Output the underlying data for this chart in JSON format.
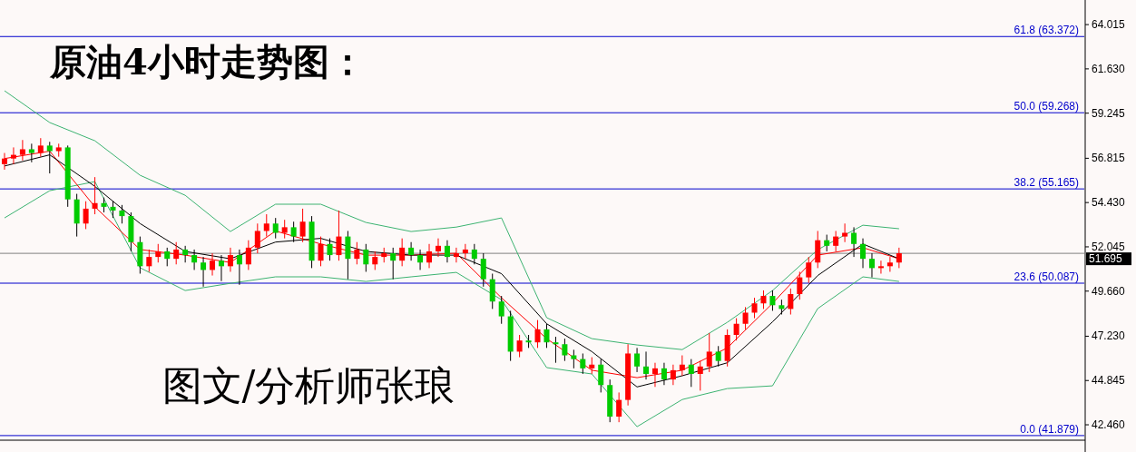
{
  "chart_data": {
    "type": "candlestick",
    "title": "原油4小时走势图：",
    "annotations": [
      "图文/分析师张琅"
    ],
    "categories": [
      null,
      null,
      null,
      null,
      null,
      null,
      null,
      null,
      null,
      null,
      null,
      null,
      null,
      null,
      null,
      null,
      null,
      null,
      null,
      null,
      null,
      null,
      null,
      null,
      null,
      null,
      null,
      null,
      null,
      null,
      null,
      null,
      null,
      null,
      null,
      null,
      null,
      null,
      null,
      null,
      null,
      null,
      null,
      null,
      null,
      null,
      null,
      null,
      null,
      null,
      null,
      null,
      null,
      null,
      null,
      null,
      null,
      null,
      null,
      null,
      null,
      null,
      null,
      null,
      null,
      null,
      null,
      null,
      null,
      null,
      null,
      null,
      null,
      null,
      null,
      null,
      null,
      null,
      null,
      null,
      null,
      null,
      null,
      null,
      null,
      null,
      null,
      null,
      null,
      null,
      null,
      null,
      null,
      null,
      null,
      null,
      null,
      null,
      null,
      null,
      null,
      null,
      null,
      null,
      null,
      null,
      null,
      null,
      null,
      null,
      null,
      null,
      null,
      null,
      null,
      null,
      null,
      null,
      null,
      null
    ],
    "ohlc": [
      [
        56.5,
        57.1,
        56.2,
        56.8
      ],
      [
        56.8,
        57.4,
        56.5,
        57.0
      ],
      [
        57.0,
        57.8,
        56.7,
        57.3
      ],
      [
        57.3,
        57.6,
        56.6,
        57.1
      ],
      [
        57.1,
        57.9,
        56.9,
        57.5
      ],
      [
        57.5,
        57.7,
        56.0,
        57.2
      ],
      [
        57.2,
        57.6,
        56.9,
        57.4
      ],
      [
        57.4,
        57.5,
        54.2,
        54.6
      ],
      [
        54.6,
        54.9,
        52.6,
        53.3
      ],
      [
        53.3,
        54.5,
        53.0,
        54.1
      ],
      [
        54.1,
        55.8,
        53.8,
        54.4
      ],
      [
        54.4,
        54.7,
        53.9,
        54.2
      ],
      [
        54.2,
        54.5,
        53.6,
        54.0
      ],
      [
        54.0,
        54.3,
        53.3,
        53.7
      ],
      [
        53.7,
        53.9,
        51.8,
        52.3
      ],
      [
        52.3,
        52.6,
        50.6,
        51.0
      ],
      [
        51.0,
        51.9,
        50.7,
        51.5
      ],
      [
        51.5,
        52.2,
        51.2,
        51.8
      ],
      [
        51.8,
        52.0,
        51.0,
        51.4
      ],
      [
        51.4,
        52.3,
        51.1,
        51.9
      ],
      [
        51.9,
        52.1,
        51.2,
        51.6
      ],
      [
        51.6,
        51.9,
        50.8,
        51.2
      ],
      [
        51.2,
        51.5,
        49.9,
        50.8
      ],
      [
        50.8,
        51.7,
        50.5,
        51.3
      ],
      [
        51.3,
        51.6,
        50.2,
        51.0
      ],
      [
        51.0,
        52.0,
        50.7,
        51.6
      ],
      [
        51.6,
        51.9,
        50.0,
        51.1
      ],
      [
        51.1,
        52.4,
        50.8,
        52.0
      ],
      [
        52.0,
        53.3,
        51.7,
        52.9
      ],
      [
        52.9,
        53.8,
        52.6,
        53.3
      ],
      [
        53.3,
        53.6,
        52.5,
        52.8
      ],
      [
        52.8,
        53.5,
        52.5,
        53.1
      ],
      [
        53.1,
        53.4,
        52.3,
        52.6
      ],
      [
        52.6,
        54.1,
        52.3,
        53.4
      ],
      [
        53.4,
        53.7,
        50.9,
        51.3
      ],
      [
        51.3,
        52.6,
        51.0,
        52.2
      ],
      [
        52.2,
        52.5,
        51.3,
        51.6
      ],
      [
        51.6,
        54.0,
        51.3,
        52.6
      ],
      [
        52.6,
        52.9,
        50.3,
        51.4
      ],
      [
        51.4,
        52.3,
        51.1,
        51.9
      ],
      [
        51.9,
        52.2,
        50.7,
        51.1
      ],
      [
        51.1,
        51.8,
        50.8,
        51.5
      ],
      [
        51.5,
        52.0,
        51.2,
        51.7
      ],
      [
        51.7,
        52.0,
        50.3,
        51.3
      ],
      [
        51.3,
        52.5,
        51.0,
        52.0
      ],
      [
        52.0,
        52.3,
        51.3,
        51.6
      ],
      [
        51.6,
        51.9,
        50.8,
        51.2
      ],
      [
        51.2,
        52.2,
        50.9,
        51.8
      ],
      [
        51.8,
        52.5,
        51.5,
        52.1
      ],
      [
        52.1,
        52.4,
        51.2,
        51.5
      ],
      [
        51.5,
        52.0,
        51.2,
        51.7
      ],
      [
        51.7,
        52.2,
        51.4,
        51.9
      ],
      [
        51.9,
        52.2,
        51.1,
        51.4
      ],
      [
        51.4,
        51.7,
        49.9,
        50.3
      ],
      [
        50.3,
        50.6,
        48.7,
        49.1
      ],
      [
        49.1,
        49.4,
        47.9,
        48.3
      ],
      [
        48.3,
        48.6,
        45.9,
        46.4
      ],
      [
        46.4,
        47.3,
        46.1,
        47.0
      ],
      [
        47.0,
        47.3,
        46.6,
        46.9
      ],
      [
        46.9,
        48.1,
        46.6,
        47.6
      ],
      [
        47.6,
        47.9,
        46.6,
        46.9
      ],
      [
        46.9,
        47.2,
        45.8,
        46.8
      ],
      [
        46.8,
        47.1,
        45.9,
        46.2
      ],
      [
        46.2,
        46.5,
        45.5,
        46.0
      ],
      [
        46.0,
        46.3,
        45.2,
        45.5
      ],
      [
        45.5,
        46.1,
        45.2,
        45.7
      ],
      [
        45.7,
        46.0,
        44.2,
        44.6
      ],
      [
        44.6,
        44.9,
        42.6,
        42.9
      ],
      [
        42.9,
        44.2,
        42.6,
        43.8
      ],
      [
        43.8,
        46.8,
        43.5,
        46.3
      ],
      [
        46.3,
        46.6,
        45.3,
        45.6
      ],
      [
        45.6,
        46.4,
        44.9,
        45.2
      ],
      [
        45.2,
        45.8,
        44.5,
        45.5
      ],
      [
        45.5,
        45.8,
        44.6,
        44.9
      ],
      [
        44.9,
        45.7,
        44.6,
        45.4
      ],
      [
        45.4,
        46.2,
        45.1,
        45.7
      ],
      [
        45.7,
        46.0,
        44.5,
        45.2
      ],
      [
        45.2,
        45.9,
        44.3,
        45.6
      ],
      [
        45.6,
        47.4,
        45.3,
        46.4
      ],
      [
        46.4,
        46.7,
        45.6,
        45.9
      ],
      [
        45.9,
        47.6,
        45.6,
        47.3
      ],
      [
        47.3,
        48.2,
        47.0,
        47.9
      ],
      [
        47.9,
        48.8,
        47.6,
        48.5
      ],
      [
        48.5,
        49.3,
        48.2,
        49.0
      ],
      [
        49.0,
        49.7,
        48.7,
        49.4
      ],
      [
        49.4,
        49.7,
        48.6,
        48.9
      ],
      [
        48.9,
        49.2,
        48.4,
        48.7
      ],
      [
        48.7,
        49.8,
        48.4,
        49.5
      ],
      [
        49.5,
        50.7,
        49.2,
        50.4
      ],
      [
        50.4,
        51.5,
        50.1,
        51.2
      ],
      [
        51.2,
        52.9,
        50.9,
        52.4
      ],
      [
        52.4,
        52.7,
        51.8,
        52.1
      ],
      [
        52.1,
        52.9,
        51.8,
        52.6
      ],
      [
        52.6,
        53.3,
        52.3,
        52.8
      ],
      [
        52.8,
        53.1,
        51.5,
        52.2
      ],
      [
        52.2,
        52.5,
        50.9,
        51.4
      ],
      [
        51.4,
        51.7,
        50.4,
        50.9
      ],
      [
        50.9,
        51.3,
        50.6,
        51.0
      ],
      [
        51.0,
        51.5,
        50.7,
        51.2
      ],
      [
        51.2,
        52.0,
        50.9,
        51.7
      ],
      null,
      null,
      null,
      null,
      null,
      null,
      null,
      null,
      null,
      null,
      null,
      null,
      null,
      null,
      null,
      null,
      null,
      null,
      null,
      null
    ],
    "series": [
      {
        "type": "line",
        "color": "#3cb371",
        "values": [
          60.45,
          null,
          null,
          null,
          null,
          58.74,
          null,
          null,
          null,
          null,
          57.76,
          null,
          null,
          null,
          null,
          55.9,
          null,
          null,
          null,
          null,
          54.82,
          null,
          null,
          null,
          null,
          52.87,
          null,
          null,
          null,
          null,
          54.34,
          null,
          null,
          null,
          null,
          54.34,
          null,
          null,
          null,
          null,
          53.36,
          null,
          null,
          null,
          null,
          52.87,
          null,
          null,
          null,
          null,
          53.11,
          null,
          null,
          null,
          null,
          53.6,
          null,
          null,
          null,
          null,
          48.23,
          null,
          null,
          null,
          null,
          47.1,
          null,
          null,
          null,
          null,
          46.76,
          null,
          null,
          null,
          null,
          46.51,
          null,
          null,
          null,
          null,
          47.98,
          null,
          null,
          null,
          null,
          49.69,
          null,
          null,
          null,
          null,
          51.89,
          null,
          null,
          null,
          null,
          53.21,
          null,
          null,
          null,
          53.02,
          null,
          null,
          null,
          null,
          null,
          null,
          null,
          null,
          null,
          null,
          null,
          null,
          null,
          null,
          null,
          null,
          null,
          null,
          null,
          null
        ]
      },
      {
        "type": "line",
        "color": "#3cb371",
        "values": [
          53.6,
          null,
          null,
          null,
          null,
          55.07,
          null,
          null,
          null,
          null,
          55.56,
          null,
          null,
          null,
          null,
          50.92,
          null,
          null,
          null,
          null,
          49.69,
          null,
          null,
          null,
          null,
          50.08,
          null,
          null,
          null,
          null,
          50.43,
          null,
          null,
          null,
          null,
          50.43,
          null,
          null,
          null,
          null,
          50.18,
          null,
          null,
          null,
          null,
          50.43,
          null,
          null,
          null,
          null,
          50.67,
          null,
          null,
          null,
          null,
          49.2,
          null,
          null,
          null,
          null,
          45.54,
          null,
          null,
          null,
          null,
          45.2,
          null,
          null,
          null,
          null,
          42.36,
          null,
          null,
          null,
          null,
          43.82,
          null,
          null,
          null,
          null,
          44.41,
          null,
          null,
          null,
          null,
          44.56,
          null,
          null,
          null,
          null,
          48.72,
          null,
          null,
          null,
          null,
          50.43,
          null,
          null,
          null,
          50.18,
          null,
          null,
          null,
          null,
          null,
          null,
          null,
          null,
          null,
          null,
          null,
          null,
          null,
          null,
          null,
          null,
          null,
          null,
          null,
          null
        ]
      },
      {
        "type": "line",
        "color": "#ff0000",
        "values": [
          56.8,
          null,
          null,
          null,
          null,
          57.2,
          null,
          null,
          null,
          null,
          54.2,
          null,
          null,
          null,
          null,
          51.9,
          null,
          null,
          null,
          null,
          51.6,
          null,
          null,
          null,
          null,
          51.2,
          null,
          null,
          null,
          null,
          52.9,
          null,
          null,
          null,
          null,
          52.2,
          null,
          null,
          null,
          null,
          51.6,
          null,
          null,
          null,
          null,
          51.6,
          null,
          null,
          null,
          null,
          51.7,
          null,
          null,
          null,
          null,
          49.3,
          null,
          null,
          null,
          null,
          47.1,
          null,
          null,
          null,
          null,
          45.4,
          null,
          null,
          null,
          null,
          45.0,
          null,
          null,
          null,
          null,
          45.4,
          null,
          null,
          null,
          null,
          46.6,
          null,
          null,
          null,
          null,
          49.0,
          null,
          null,
          null,
          null,
          51.6,
          null,
          null,
          null,
          null,
          52.0,
          null,
          null,
          null,
          51.4,
          null,
          null,
          null,
          null,
          null,
          null,
          null,
          null,
          null,
          null,
          null,
          null,
          null,
          null,
          null,
          null,
          null,
          null,
          null,
          null
        ]
      },
      {
        "type": "line",
        "color": "#000000",
        "values": [
          56.4,
          null,
          null,
          null,
          null,
          57.0,
          null,
          null,
          null,
          null,
          55.3,
          null,
          null,
          null,
          null,
          53.3,
          null,
          null,
          null,
          null,
          51.8,
          null,
          null,
          null,
          null,
          51.4,
          null,
          null,
          null,
          null,
          52.3,
          null,
          null,
          null,
          null,
          52.5,
          null,
          null,
          null,
          null,
          51.8,
          null,
          null,
          null,
          null,
          51.6,
          null,
          null,
          null,
          null,
          51.6,
          null,
          null,
          null,
          null,
          50.6,
          null,
          null,
          null,
          null,
          47.9,
          null,
          null,
          null,
          null,
          46.4,
          null,
          null,
          null,
          null,
          44.5,
          null,
          null,
          null,
          null,
          45.1,
          null,
          null,
          null,
          null,
          45.8,
          null,
          null,
          null,
          null,
          48.0,
          null,
          null,
          null,
          null,
          50.5,
          null,
          null,
          null,
          null,
          52.2,
          null,
          null,
          null,
          51.4,
          null,
          null,
          null,
          null,
          null,
          null,
          null,
          null,
          null,
          null,
          null,
          null,
          null,
          null,
          null,
          null,
          null,
          null,
          null,
          null
        ]
      }
    ],
    "ref_lines": [
      {
        "axis": "y",
        "value": 63.372,
        "label": "61.8 (63.372)",
        "color": "#0000cc"
      },
      {
        "axis": "y",
        "value": 59.268,
        "label": "50.0 (59.268)",
        "color": "#0000cc"
      },
      {
        "axis": "y",
        "value": 55.165,
        "label": "38.2 (55.165)",
        "color": "#0000cc"
      },
      {
        "axis": "y",
        "value": 50.087,
        "label": "23.6 (50.087)",
        "color": "#0000cc"
      },
      {
        "axis": "y",
        "value": 41.879,
        "label": "0.0 (41.879)",
        "color": "#0000cc"
      },
      {
        "axis": "y",
        "value": 51.695,
        "label": "51.695",
        "color": "#808080"
      }
    ],
    "ylim": [
      41.63,
      65.34
    ],
    "yticks": [
      {
        "value": 42.46,
        "label": "42.460"
      },
      {
        "value": 44.845,
        "label": "44.845"
      },
      {
        "value": 47.23,
        "label": "47.230"
      },
      {
        "value": 49.66,
        "label": "49.660"
      },
      {
        "value": 52.045,
        "label": "52.045"
      },
      {
        "value": 54.43,
        "label": "54.430"
      },
      {
        "value": 56.815,
        "label": "56.815"
      },
      {
        "value": 59.245,
        "label": "59.245"
      },
      {
        "value": 61.63,
        "label": "61.630"
      },
      {
        "value": 64.015,
        "label": "64.015"
      }
    ],
    "tick_labels": "y"
  }
}
